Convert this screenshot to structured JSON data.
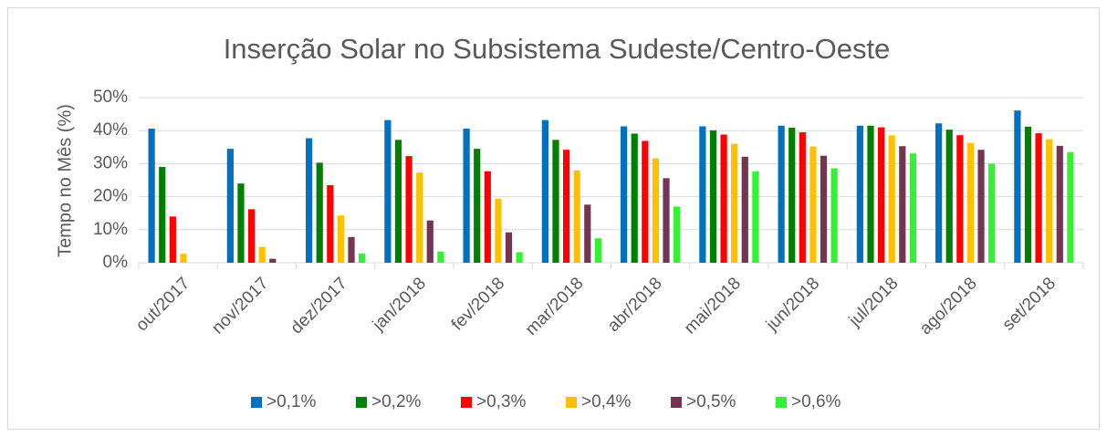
{
  "chart_data": {
    "type": "bar",
    "title": "Inserção Solar no Subsistema Sudeste/Centro-Oeste",
    "y_label": "Tempo no Mês (%)",
    "categories": [
      "out/2017",
      "nov/2017",
      "dez/2017",
      "jan/2018",
      "fev/2018",
      "mar/2018",
      "abr/2018",
      "mai/2018",
      "jun/2018",
      "jul/2018",
      "ago/2018",
      "set/2018"
    ],
    "series": [
      {
        "name": ">0,1%",
        "color": "#0070c0",
        "values": [
          40.6,
          34.5,
          37.7,
          43.2,
          40.6,
          43.2,
          41.3,
          41.3,
          41.5,
          41.5,
          42.2,
          46.1
        ]
      },
      {
        "name": ">0,2%",
        "color": "#008000",
        "values": [
          29.0,
          24.0,
          30.3,
          37.2,
          34.5,
          37.2,
          39.1,
          40.1,
          40.9,
          41.5,
          40.3,
          41.2
        ]
      },
      {
        "name": ">0,3%",
        "color": "#ff0000",
        "values": [
          14.0,
          16.2,
          23.5,
          32.3,
          27.7,
          34.2,
          36.9,
          38.8,
          39.5,
          41.0,
          38.6,
          39.2
        ]
      },
      {
        "name": ">0,4%",
        "color": "#ffc000",
        "values": [
          2.7,
          4.8,
          14.3,
          27.3,
          19.4,
          27.9,
          31.6,
          36.0,
          35.2,
          38.6,
          36.3,
          37.4
        ]
      },
      {
        "name": ">0,5%",
        "color": "#733551",
        "values": [
          0,
          1.2,
          7.8,
          12.8,
          9.2,
          17.6,
          25.6,
          32.1,
          32.4,
          35.3,
          34.2,
          35.4
        ]
      },
      {
        "name": ">0,6%",
        "color": "#33f233",
        "values": [
          0,
          0,
          2.8,
          3.4,
          3.2,
          7.4,
          17.0,
          27.6,
          28.6,
          33.1,
          30.0,
          33.5
        ]
      }
    ],
    "ylim": [
      0,
      50
    ],
    "yticks": [
      {
        "value": 0,
        "label": "0%"
      },
      {
        "value": 10,
        "label": "10%"
      },
      {
        "value": 20,
        "label": "20%"
      },
      {
        "value": 30,
        "label": "30%"
      },
      {
        "value": 40,
        "label": "40%"
      },
      {
        "value": 50,
        "label": "50%"
      }
    ],
    "grid": true,
    "legend": "bottom"
  }
}
